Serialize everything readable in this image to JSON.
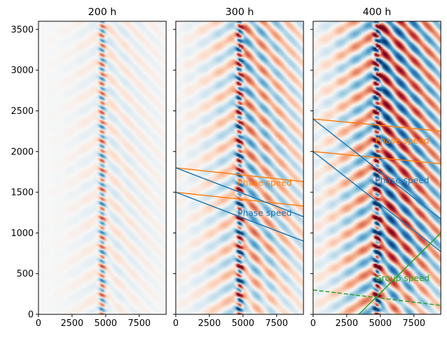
{
  "chart_data": [
    {
      "type": "heatmap",
      "title": "200 h",
      "xlim": [
        0,
        9500
      ],
      "ylim": [
        0,
        3600
      ],
      "xticks": [
        "0",
        "2500",
        "5000",
        "7500"
      ],
      "yticks": [
        "0",
        "500",
        "1000",
        "1500",
        "2000",
        "2500",
        "3000",
        "3500"
      ],
      "colormap": "RdBu_r",
      "amplitude": 0.35,
      "lines": [],
      "annotations": []
    },
    {
      "type": "heatmap",
      "title": "300 h",
      "xlim": [
        0,
        9500
      ],
      "ylim": [
        0,
        3600
      ],
      "xticks": [
        "0",
        "2500",
        "5000",
        "7500"
      ],
      "yticks": [],
      "colormap": "RdBu_r",
      "amplitude": 0.75,
      "lines": [
        {
          "color": "#ff7f0e",
          "style": "solid",
          "x": [
            0,
            9500
          ],
          "y": [
            1800,
            1630
          ]
        },
        {
          "color": "#ff7f0e",
          "style": "solid",
          "x": [
            0,
            9500
          ],
          "y": [
            1500,
            1330
          ]
        },
        {
          "color": "#1f77b4",
          "style": "solid",
          "x": [
            0,
            9500
          ],
          "y": [
            1800,
            1200
          ]
        },
        {
          "color": "#1f77b4",
          "style": "solid",
          "x": [
            0,
            9500
          ],
          "y": [
            1500,
            900
          ]
        }
      ],
      "annotations": [
        {
          "text": "Phase speed",
          "x": 4600,
          "y": 1580,
          "color": "#ff7f0e"
        },
        {
          "text": "Phase speed",
          "x": 4600,
          "y": 1210,
          "color": "#1f77b4"
        }
      ]
    },
    {
      "type": "heatmap",
      "title": "400 h",
      "xlim": [
        0,
        9500
      ],
      "ylim": [
        0,
        3600
      ],
      "xticks": [
        "0",
        "2500",
        "5000",
        "7500"
      ],
      "yticks": [],
      "colormap": "RdBu_r",
      "amplitude": 1.0,
      "lines": [
        {
          "color": "#ff7f0e",
          "style": "solid",
          "x": [
            0,
            9500
          ],
          "y": [
            2400,
            2250
          ]
        },
        {
          "color": "#ff7f0e",
          "style": "solid",
          "x": [
            0,
            9500
          ],
          "y": [
            2000,
            1850
          ]
        },
        {
          "color": "#1f77b4",
          "style": "solid",
          "x": [
            0,
            9500
          ],
          "y": [
            2400,
            1170
          ]
        },
        {
          "color": "#1f77b4",
          "style": "solid",
          "x": [
            0,
            9500
          ],
          "y": [
            2000,
            770
          ]
        },
        {
          "color": "#2ca02c",
          "style": "solid",
          "x": [
            3400,
            9500
          ],
          "y": [
            0,
            1000
          ]
        },
        {
          "color": "#2ca02c",
          "style": "dashed",
          "x": [
            0,
            9500
          ],
          "y": [
            300,
            110
          ]
        }
      ],
      "annotations": [
        {
          "text": "Phase speed",
          "x": 4600,
          "y": 2100,
          "color": "#ff7f0e"
        },
        {
          "text": "Phase speed",
          "x": 4600,
          "y": 1610,
          "color": "#1f77b4"
        },
        {
          "text": "Group speed",
          "x": 4600,
          "y": 410,
          "color": "#2ca02c"
        }
      ]
    }
  ]
}
